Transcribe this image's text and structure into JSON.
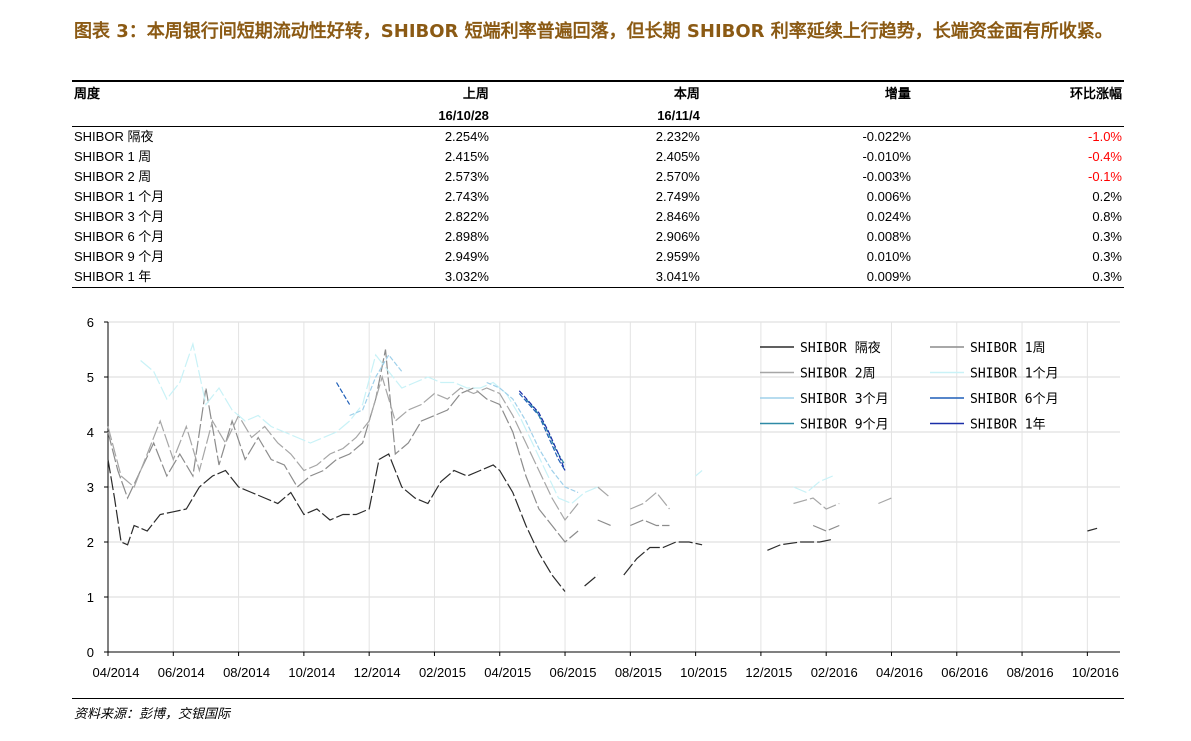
{
  "title": "图表 3：本周银行间短期流动性好转，SHIBOR 短端利率普遍回落，但长期 SHIBOR 利率延续上行趋势，长端资金面有所收紧。",
  "table": {
    "headers": [
      "周度",
      "上周",
      "本周",
      "增量",
      "环比涨幅"
    ],
    "dates": [
      "",
      "16/10/28",
      "16/11/4",
      "",
      ""
    ],
    "rows": [
      {
        "name": "SHIBOR 隔夜",
        "prev": "2.254%",
        "curr": "2.232%",
        "delta": "-0.022%",
        "pct": "-1.0%",
        "neg": true
      },
      {
        "name": "SHIBOR 1 周",
        "prev": "2.415%",
        "curr": "2.405%",
        "delta": "-0.010%",
        "pct": "-0.4%",
        "neg": true
      },
      {
        "name": "SHIBOR 2 周",
        "prev": "2.573%",
        "curr": "2.570%",
        "delta": "-0.003%",
        "pct": "-0.1%",
        "neg": true
      },
      {
        "name": "SHIBOR 1 个月",
        "prev": "2.743%",
        "curr": "2.749%",
        "delta": "0.006%",
        "pct": "0.2%",
        "neg": false
      },
      {
        "name": "SHIBOR 3 个月",
        "prev": "2.822%",
        "curr": "2.846%",
        "delta": "0.024%",
        "pct": "0.8%",
        "neg": false
      },
      {
        "name": "SHIBOR 6 个月",
        "prev": "2.898%",
        "curr": "2.906%",
        "delta": "0.008%",
        "pct": "0.3%",
        "neg": false
      },
      {
        "name": "SHIBOR 9 个月",
        "prev": "2.949%",
        "curr": "2.959%",
        "delta": "0.010%",
        "pct": "0.3%",
        "neg": false
      },
      {
        "name": "SHIBOR 1 年",
        "prev": "3.032%",
        "curr": "3.041%",
        "delta": "0.009%",
        "pct": "0.3%",
        "neg": false
      }
    ],
    "neg_color": "#ff0000"
  },
  "chart_data": {
    "type": "line",
    "ylim": [
      0,
      6
    ],
    "yticks": [
      "0",
      "1",
      "2",
      "3",
      "4",
      "5",
      "6"
    ],
    "xlim": [
      0,
      31
    ],
    "xticks": [
      "04/2014",
      "06/2014",
      "08/2014",
      "10/2014",
      "12/2014",
      "02/2015",
      "04/2015",
      "06/2015",
      "08/2015",
      "10/2015",
      "12/2015",
      "02/2016",
      "04/2016",
      "06/2016",
      "08/2016",
      "10/2016"
    ],
    "xtick_pos": [
      0,
      2,
      4,
      6,
      8,
      10,
      12,
      14,
      16,
      18,
      20,
      22,
      24,
      26,
      28,
      30
    ],
    "legend_position": "top-right",
    "series": [
      {
        "name": "SHIBOR 隔夜",
        "color": "#2b2b2b",
        "points": [
          [
            0.0,
            3.5
          ],
          [
            0.2,
            2.8
          ],
          [
            0.4,
            2.0
          ],
          [
            0.6,
            1.95
          ],
          [
            0.8,
            2.3
          ],
          [
            1.2,
            2.2
          ],
          [
            1.6,
            2.5
          ],
          [
            2.0,
            2.55
          ],
          [
            2.4,
            2.6
          ],
          [
            2.8,
            3.0
          ],
          [
            3.2,
            3.2
          ],
          [
            3.6,
            3.3
          ],
          [
            4.0,
            3.0
          ],
          [
            4.4,
            2.9
          ],
          [
            4.8,
            2.8
          ],
          [
            5.2,
            2.7
          ],
          [
            5.6,
            2.9
          ],
          [
            6.0,
            2.5
          ],
          [
            6.4,
            2.6
          ],
          [
            6.8,
            2.4
          ],
          [
            7.2,
            2.5
          ],
          [
            7.6,
            2.5
          ],
          [
            8.0,
            2.6
          ],
          [
            8.3,
            3.5
          ],
          [
            8.6,
            3.6
          ],
          [
            9.0,
            3.0
          ],
          [
            9.4,
            2.8
          ],
          [
            9.8,
            2.7
          ],
          [
            10.2,
            3.1
          ],
          [
            10.6,
            3.3
          ],
          [
            11.0,
            3.2
          ],
          [
            11.4,
            3.3
          ],
          [
            11.8,
            3.4
          ],
          [
            12.0,
            3.3
          ],
          [
            12.4,
            2.9
          ],
          [
            12.8,
            2.3
          ],
          [
            13.2,
            1.8
          ],
          [
            13.6,
            1.4
          ],
          [
            14.0,
            1.1
          ],
          [
            null,
            null
          ],
          [
            14.6,
            1.2
          ],
          [
            15.0,
            1.4
          ],
          [
            null,
            null
          ],
          [
            15.8,
            1.4
          ],
          [
            16.2,
            1.7
          ],
          [
            16.6,
            1.9
          ],
          [
            17.0,
            1.9
          ],
          [
            17.4,
            2.0
          ],
          [
            17.8,
            2.0
          ],
          [
            18.2,
            1.95
          ],
          [
            null,
            null
          ],
          [
            19.0,
            1.9
          ],
          [
            null,
            null
          ],
          [
            20.2,
            1.85
          ],
          [
            20.6,
            1.95
          ],
          [
            21.2,
            2.0
          ],
          [
            21.8,
            2.0
          ],
          [
            22.2,
            2.05
          ],
          [
            null,
            null
          ],
          [
            23.0,
            2.0
          ],
          [
            null,
            null
          ],
          [
            24.0,
            2.0
          ],
          [
            null,
            null
          ],
          [
            30.0,
            2.2
          ],
          [
            30.3,
            2.25
          ]
        ]
      },
      {
        "name": "SHIBOR 1周",
        "color": "#8c8c8c",
        "points": [
          [
            0.0,
            4.0
          ],
          [
            0.3,
            3.3
          ],
          [
            0.6,
            2.8
          ],
          [
            1.0,
            3.3
          ],
          [
            1.4,
            3.8
          ],
          [
            1.8,
            3.2
          ],
          [
            2.2,
            3.6
          ],
          [
            2.6,
            3.2
          ],
          [
            3.0,
            4.8
          ],
          [
            3.4,
            3.4
          ],
          [
            3.8,
            4.2
          ],
          [
            4.2,
            3.5
          ],
          [
            4.6,
            3.9
          ],
          [
            5.0,
            3.5
          ],
          [
            5.4,
            3.4
          ],
          [
            5.8,
            3.0
          ],
          [
            6.2,
            3.2
          ],
          [
            6.6,
            3.3
          ],
          [
            7.0,
            3.5
          ],
          [
            7.4,
            3.6
          ],
          [
            7.8,
            3.8
          ],
          [
            8.2,
            4.6
          ],
          [
            8.5,
            5.5
          ],
          [
            8.8,
            3.6
          ],
          [
            9.2,
            3.8
          ],
          [
            9.6,
            4.2
          ],
          [
            10.0,
            4.3
          ],
          [
            10.4,
            4.4
          ],
          [
            10.8,
            4.7
          ],
          [
            11.2,
            4.8
          ],
          [
            11.6,
            4.6
          ],
          [
            12.0,
            4.5
          ],
          [
            12.4,
            4.0
          ],
          [
            12.8,
            3.2
          ],
          [
            13.2,
            2.6
          ],
          [
            13.6,
            2.3
          ],
          [
            14.0,
            2.0
          ],
          [
            14.4,
            2.2
          ],
          [
            null,
            null
          ],
          [
            15.0,
            2.4
          ],
          [
            15.4,
            2.3
          ],
          [
            null,
            null
          ],
          [
            16.0,
            2.3
          ],
          [
            16.4,
            2.4
          ],
          [
            16.8,
            2.3
          ],
          [
            17.2,
            2.3
          ],
          [
            null,
            null
          ],
          [
            18.0,
            2.3
          ],
          [
            null,
            null
          ],
          [
            21.6,
            2.3
          ],
          [
            22.0,
            2.2
          ],
          [
            22.4,
            2.3
          ],
          [
            null,
            null
          ],
          [
            24.0,
            2.3
          ],
          [
            null,
            null
          ],
          [
            30.0,
            2.3
          ]
        ]
      },
      {
        "name": "SHIBOR 2周",
        "color": "#a6a6a6",
        "points": [
          [
            0.0,
            4.1
          ],
          [
            0.4,
            3.2
          ],
          [
            0.8,
            3.0
          ],
          [
            1.2,
            3.6
          ],
          [
            1.6,
            4.2
          ],
          [
            2.0,
            3.5
          ],
          [
            2.4,
            4.1
          ],
          [
            2.8,
            3.3
          ],
          [
            3.2,
            4.2
          ],
          [
            3.6,
            3.8
          ],
          [
            4.0,
            4.3
          ],
          [
            4.4,
            3.9
          ],
          [
            4.8,
            4.1
          ],
          [
            5.2,
            3.8
          ],
          [
            5.6,
            3.6
          ],
          [
            6.0,
            3.3
          ],
          [
            6.4,
            3.4
          ],
          [
            6.8,
            3.6
          ],
          [
            7.2,
            3.7
          ],
          [
            7.6,
            3.9
          ],
          [
            8.0,
            4.2
          ],
          [
            8.4,
            5.0
          ],
          [
            8.8,
            4.2
          ],
          [
            9.2,
            4.4
          ],
          [
            9.6,
            4.5
          ],
          [
            10.0,
            4.7
          ],
          [
            10.4,
            4.6
          ],
          [
            10.8,
            4.8
          ],
          [
            11.2,
            4.7
          ],
          [
            11.6,
            4.8
          ],
          [
            12.0,
            4.7
          ],
          [
            12.4,
            4.3
          ],
          [
            12.8,
            3.8
          ],
          [
            13.2,
            3.3
          ],
          [
            13.6,
            2.8
          ],
          [
            14.0,
            2.4
          ],
          [
            14.4,
            2.7
          ],
          [
            null,
            null
          ],
          [
            15.0,
            3.0
          ],
          [
            15.4,
            2.8
          ],
          [
            null,
            null
          ],
          [
            16.0,
            2.6
          ],
          [
            16.4,
            2.7
          ],
          [
            16.8,
            2.9
          ],
          [
            17.2,
            2.6
          ],
          [
            null,
            null
          ],
          [
            18.2,
            2.6
          ],
          [
            null,
            null
          ],
          [
            21.0,
            2.7
          ],
          [
            21.6,
            2.8
          ],
          [
            22.0,
            2.6
          ],
          [
            22.4,
            2.7
          ],
          [
            null,
            null
          ],
          [
            23.6,
            2.7
          ],
          [
            24.0,
            2.8
          ]
        ]
      },
      {
        "name": "SHIBOR 1个月",
        "color": "#c9f2f7",
        "points": [
          [
            1.0,
            5.3
          ],
          [
            1.4,
            5.1
          ],
          [
            1.8,
            4.6
          ],
          [
            2.2,
            4.9
          ],
          [
            2.6,
            5.6
          ],
          [
            3.0,
            4.5
          ],
          [
            3.4,
            4.8
          ],
          [
            3.8,
            4.4
          ],
          [
            4.2,
            4.2
          ],
          [
            4.6,
            4.3
          ],
          [
            5.0,
            4.1
          ],
          [
            5.4,
            4.0
          ],
          [
            5.8,
            3.9
          ],
          [
            6.2,
            3.8
          ],
          [
            6.6,
            3.9
          ],
          [
            7.0,
            4.0
          ],
          [
            7.4,
            4.2
          ],
          [
            7.8,
            4.5
          ],
          [
            8.2,
            5.4
          ],
          [
            8.6,
            5.1
          ],
          [
            9.0,
            4.8
          ],
          [
            9.4,
            4.9
          ],
          [
            9.8,
            5.0
          ],
          [
            10.2,
            4.9
          ],
          [
            10.6,
            4.9
          ],
          [
            11.0,
            4.8
          ],
          [
            11.4,
            4.8
          ],
          [
            11.8,
            4.9
          ],
          [
            12.2,
            4.7
          ],
          [
            12.6,
            4.3
          ],
          [
            13.0,
            3.8
          ],
          [
            13.4,
            3.3
          ],
          [
            13.8,
            2.8
          ],
          [
            14.2,
            2.7
          ],
          [
            14.6,
            2.9
          ],
          [
            15.0,
            3.0
          ],
          [
            null,
            null
          ],
          [
            18.0,
            3.2
          ],
          [
            18.2,
            3.3
          ],
          [
            null,
            null
          ],
          [
            21.0,
            3.0
          ],
          [
            21.4,
            2.9
          ],
          [
            21.8,
            3.1
          ],
          [
            22.2,
            3.2
          ]
        ]
      },
      {
        "name": "SHIBOR 3个月",
        "color": "#9fd0ea",
        "points": [
          [
            7.4,
            4.3
          ],
          [
            7.8,
            4.4
          ],
          [
            8.2,
            5.0
          ],
          [
            8.6,
            5.4
          ],
          [
            9.0,
            5.1
          ],
          [
            null,
            null
          ],
          [
            11.6,
            4.9
          ],
          [
            12.0,
            4.8
          ],
          [
            12.4,
            4.6
          ],
          [
            12.8,
            4.2
          ],
          [
            13.2,
            3.7
          ],
          [
            13.6,
            3.3
          ],
          [
            14.0,
            3.0
          ],
          [
            14.4,
            2.9
          ]
        ]
      },
      {
        "name": "SHIBOR 6个月",
        "color": "#1f5fb8",
        "points": [
          [
            7.0,
            4.9
          ],
          [
            7.2,
            4.7
          ],
          [
            7.4,
            4.5
          ],
          [
            null,
            null
          ],
          [
            12.6,
            4.7
          ],
          [
            12.9,
            4.5
          ],
          [
            13.2,
            4.3
          ],
          [
            13.5,
            3.9
          ],
          [
            13.8,
            3.5
          ],
          [
            14.0,
            3.3
          ]
        ]
      },
      {
        "name": "SHIBOR 9个月",
        "color": "#2e8aa6",
        "points": [
          [
            12.8,
            4.6
          ],
          [
            13.1,
            4.4
          ],
          [
            13.4,
            4.1
          ],
          [
            13.7,
            3.7
          ],
          [
            14.0,
            3.4
          ]
        ]
      },
      {
        "name": "SHIBOR 1年",
        "color": "#1a2ea8",
        "points": [
          [
            12.6,
            4.75
          ],
          [
            12.9,
            4.55
          ],
          [
            13.2,
            4.35
          ],
          [
            13.5,
            4.0
          ],
          [
            13.8,
            3.6
          ],
          [
            14.0,
            3.3
          ]
        ]
      }
    ]
  },
  "source": "资料来源：彭博，交银国际"
}
